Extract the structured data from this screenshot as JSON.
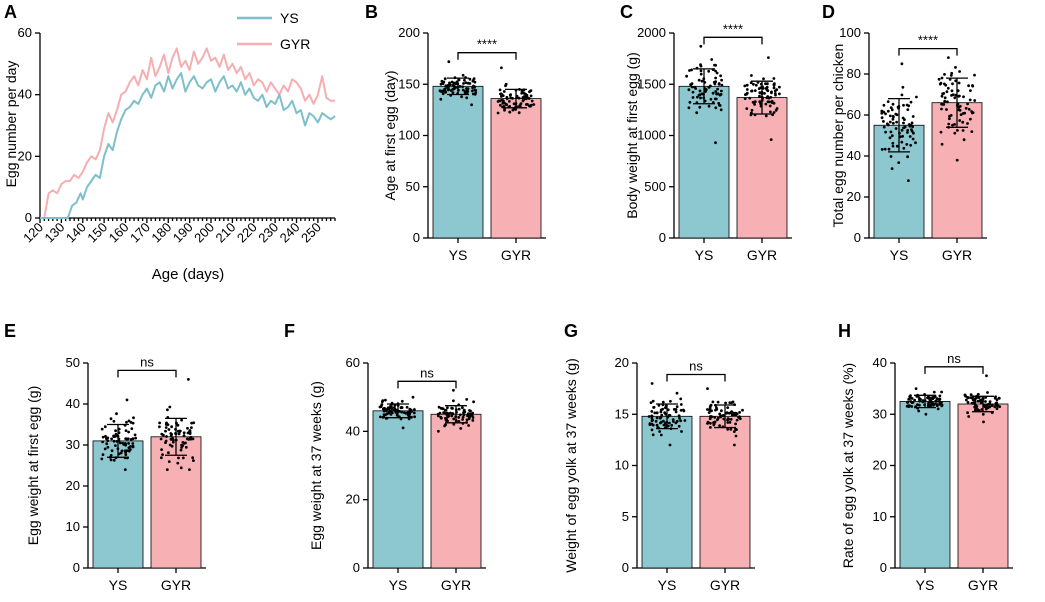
{
  "colors": {
    "ys": "#8DC8D0",
    "gyr": "#F7B1B5",
    "ys_line": "#7DBFCC",
    "gyr_line": "#F5AEB2"
  },
  "panel_a": {
    "label": "A",
    "ylabel": "Egg number per day",
    "xlabel": "Age (days)",
    "yticks": [
      "0",
      "20",
      "40",
      "60"
    ],
    "xticks": [
      "120",
      "130",
      "140",
      "150",
      "160",
      "170",
      "180",
      "190",
      "200",
      "210",
      "220",
      "230",
      "240",
      "250"
    ],
    "legend": [
      "YS",
      "GYR"
    ]
  },
  "bar_panels": [
    {
      "label": "B",
      "ylabel": "Age at first egg (day)",
      "yticks": [
        "0",
        "50",
        "100",
        "150",
        "200"
      ],
      "categories": [
        "YS",
        "GYR"
      ],
      "sig": "****"
    },
    {
      "label": "C",
      "ylabel": "Body weight at first egg (g)",
      "yticks": [
        "0",
        "500",
        "1000",
        "1500",
        "2000"
      ],
      "categories": [
        "YS",
        "GYR"
      ],
      "sig": "****"
    },
    {
      "label": "D",
      "ylabel": "Total egg number per chicken",
      "yticks": [
        "0",
        "20",
        "40",
        "60",
        "80",
        "100"
      ],
      "categories": [
        "YS",
        "GYR"
      ],
      "sig": "****"
    },
    {
      "label": "E",
      "ylabel": "Egg weight at first egg (g)",
      "yticks": [
        "0",
        "10",
        "20",
        "30",
        "40",
        "50"
      ],
      "categories": [
        "YS",
        "GYR"
      ],
      "sig": "ns"
    },
    {
      "label": "F",
      "ylabel": "Egg weight at 37 weeks (g)",
      "yticks": [
        "0",
        "20",
        "40",
        "60"
      ],
      "categories": [
        "YS",
        "GYR"
      ],
      "sig": "ns"
    },
    {
      "label": "G",
      "ylabel": "Weight of egg yolk at 37 weeks (g)",
      "yticks": [
        "0",
        "5",
        "10",
        "15",
        "20"
      ],
      "categories": [
        "YS",
        "GYR"
      ],
      "sig": "ns"
    },
    {
      "label": "H",
      "ylabel": "Rate of egg yolk at 37 weeks (%)",
      "yticks": [
        "0",
        "10",
        "20",
        "30",
        "40"
      ],
      "categories": [
        "YS",
        "GYR"
      ],
      "sig": "ns"
    }
  ],
  "chart_data": [
    {
      "panel": "A",
      "type": "line",
      "xlabel": "Age (days)",
      "ylabel": "Egg number per day",
      "xlim": [
        120,
        258
      ],
      "ylim": [
        0,
        60
      ],
      "series": [
        {
          "name": "YS",
          "points": [
            [
              120,
              0
            ],
            [
              125,
              0
            ],
            [
              130,
              0
            ],
            [
              133,
              0
            ],
            [
              135,
              4
            ],
            [
              137,
              5
            ],
            [
              139,
              8
            ],
            [
              140,
              6
            ],
            [
              142,
              10
            ],
            [
              144,
              12
            ],
            [
              146,
              14
            ],
            [
              148,
              13
            ],
            [
              150,
              20
            ],
            [
              152,
              24
            ],
            [
              154,
              22
            ],
            [
              156,
              28
            ],
            [
              158,
              32
            ],
            [
              160,
              35
            ],
            [
              162,
              36
            ],
            [
              164,
              38
            ],
            [
              166,
              37
            ],
            [
              168,
              40
            ],
            [
              170,
              42
            ],
            [
              172,
              39
            ],
            [
              174,
              43
            ],
            [
              176,
              44
            ],
            [
              178,
              41
            ],
            [
              180,
              46
            ],
            [
              182,
              42
            ],
            [
              184,
              45
            ],
            [
              186,
              47
            ],
            [
              188,
              41
            ],
            [
              190,
              44
            ],
            [
              192,
              46
            ],
            [
              194,
              43
            ],
            [
              196,
              42
            ],
            [
              198,
              44
            ],
            [
              200,
              45
            ],
            [
              202,
              41
            ],
            [
              204,
              44
            ],
            [
              206,
              46
            ],
            [
              208,
              42
            ],
            [
              210,
              43
            ],
            [
              212,
              41
            ],
            [
              214,
              44
            ],
            [
              216,
              40
            ],
            [
              218,
              42
            ],
            [
              220,
              39
            ],
            [
              222,
              38
            ],
            [
              224,
              40
            ],
            [
              226,
              36
            ],
            [
              228,
              38
            ],
            [
              230,
              37
            ],
            [
              232,
              40
            ],
            [
              234,
              35
            ],
            [
              236,
              36
            ],
            [
              238,
              38
            ],
            [
              240,
              34
            ],
            [
              242,
              35
            ],
            [
              244,
              30
            ],
            [
              246,
              34
            ],
            [
              248,
              33
            ],
            [
              250,
              31
            ],
            [
              252,
              34
            ],
            [
              254,
              33
            ],
            [
              256,
              32
            ],
            [
              258,
              33
            ]
          ]
        },
        {
          "name": "GYR",
          "points": [
            [
              120,
              0
            ],
            [
              122,
              0
            ],
            [
              124,
              8
            ],
            [
              126,
              9
            ],
            [
              128,
              8
            ],
            [
              130,
              11
            ],
            [
              132,
              12
            ],
            [
              134,
              12
            ],
            [
              136,
              14
            ],
            [
              138,
              13
            ],
            [
              140,
              15
            ],
            [
              142,
              18
            ],
            [
              144,
              20
            ],
            [
              146,
              19
            ],
            [
              148,
              22
            ],
            [
              150,
              29
            ],
            [
              152,
              34
            ],
            [
              154,
              31
            ],
            [
              156,
              35
            ],
            [
              158,
              40
            ],
            [
              160,
              41
            ],
            [
              162,
              44
            ],
            [
              164,
              46
            ],
            [
              166,
              43
            ],
            [
              168,
              48
            ],
            [
              170,
              45
            ],
            [
              172,
              52
            ],
            [
              174,
              46
            ],
            [
              176,
              49
            ],
            [
              178,
              53
            ],
            [
              180,
              47
            ],
            [
              182,
              52
            ],
            [
              184,
              55
            ],
            [
              186,
              49
            ],
            [
              188,
              51
            ],
            [
              190,
              48
            ],
            [
              192,
              54
            ],
            [
              194,
              50
            ],
            [
              196,
              52
            ],
            [
              198,
              55
            ],
            [
              200,
              51
            ],
            [
              202,
              52
            ],
            [
              204,
              49
            ],
            [
              206,
              53
            ],
            [
              208,
              48
            ],
            [
              210,
              50
            ],
            [
              212,
              47
            ],
            [
              214,
              49
            ],
            [
              216,
              45
            ],
            [
              218,
              47
            ],
            [
              220,
              43
            ],
            [
              222,
              45
            ],
            [
              224,
              44
            ],
            [
              226,
              41
            ],
            [
              228,
              44
            ],
            [
              230,
              42
            ],
            [
              232,
              40
            ],
            [
              234,
              43
            ],
            [
              236,
              41
            ],
            [
              238,
              45
            ],
            [
              240,
              44
            ],
            [
              242,
              42
            ],
            [
              244,
              38
            ],
            [
              246,
              40
            ],
            [
              248,
              37
            ],
            [
              250,
              40
            ],
            [
              252,
              46
            ],
            [
              254,
              39
            ],
            [
              256,
              38
            ],
            [
              258,
              38
            ]
          ]
        }
      ]
    },
    {
      "panel": "B",
      "type": "bar",
      "ylabel": "Age at first egg (day)",
      "categories": [
        "YS",
        "GYR"
      ],
      "values": [
        148,
        136
      ],
      "sd": [
        8,
        9
      ],
      "ylim": [
        0,
        200
      ],
      "range_low": [
        130,
        122
      ],
      "range_high": [
        172,
        166
      ],
      "significance": "****"
    },
    {
      "panel": "C",
      "type": "bar",
      "ylabel": "Body weight at first egg (g)",
      "categories": [
        "YS",
        "GYR"
      ],
      "values": [
        1480,
        1370
      ],
      "sd": [
        170,
        160
      ],
      "ylim": [
        0,
        2000
      ],
      "range_low": [
        930,
        960
      ],
      "range_high": [
        1870,
        1760
      ],
      "significance": "****"
    },
    {
      "panel": "D",
      "type": "bar",
      "ylabel": "Total egg number per chicken",
      "categories": [
        "YS",
        "GYR"
      ],
      "values": [
        55,
        66
      ],
      "sd": [
        13,
        12
      ],
      "ylim": [
        0,
        100
      ],
      "range_low": [
        28,
        38
      ],
      "range_high": [
        85,
        88
      ],
      "significance": "****"
    },
    {
      "panel": "E",
      "type": "bar",
      "ylabel": "Egg weight at first egg (g)",
      "categories": [
        "YS",
        "GYR"
      ],
      "values": [
        31,
        32
      ],
      "sd": [
        4,
        4.5
      ],
      "ylim": [
        0,
        50
      ],
      "range_low": [
        24,
        24
      ],
      "range_high": [
        41,
        46
      ],
      "significance": "ns"
    },
    {
      "panel": "F",
      "type": "bar",
      "ylabel": "Egg weight at 37 weeks (g)",
      "categories": [
        "YS",
        "GYR"
      ],
      "values": [
        46,
        45
      ],
      "sd": [
        2,
        2.5
      ],
      "ylim": [
        0,
        60
      ],
      "range_low": [
        41,
        40
      ],
      "range_high": [
        50,
        52
      ],
      "significance": "ns"
    },
    {
      "panel": "G",
      "type": "bar",
      "ylabel": "Weight of egg yolk at 37 weeks (g)",
      "categories": [
        "YS",
        "GYR"
      ],
      "values": [
        14.8,
        14.8
      ],
      "sd": [
        1.2,
        1.1
      ],
      "ylim": [
        0,
        20
      ],
      "range_low": [
        12,
        12
      ],
      "range_high": [
        18,
        17.5
      ],
      "significance": "ns"
    },
    {
      "panel": "H",
      "type": "bar",
      "ylabel": "Rate of egg yolk at 37 weeks (%)",
      "categories": [
        "YS",
        "GYR"
      ],
      "values": [
        32.5,
        32
      ],
      "sd": [
        1.2,
        1.5
      ],
      "ylim": [
        0,
        40
      ],
      "range_low": [
        30,
        28.5
      ],
      "range_high": [
        35,
        37.5
      ],
      "significance": "ns"
    }
  ]
}
